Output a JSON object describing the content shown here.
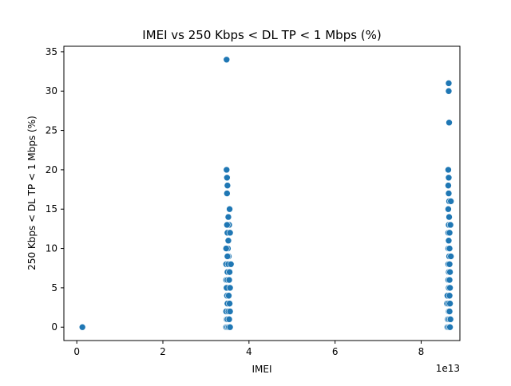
{
  "chart_data": {
    "type": "scatter",
    "title": "IMEI vs 250 Kbps < DL TP < 1 Mbps (%)",
    "xlabel": "IMEI",
    "ylabel": "250 Kbps < DL TP < 1 Mbps (%)",
    "x_offset_label": "1e13",
    "xlim": [
      -0.3,
      8.9
    ],
    "ylim": [
      -1.7,
      35.7
    ],
    "xticks": [
      0,
      2,
      4,
      6,
      8
    ],
    "yticks": [
      0,
      5,
      10,
      15,
      20,
      25,
      30,
      35
    ],
    "grid": false,
    "legend": "none",
    "marker_color": "#1f77b4",
    "series": [
      {
        "x_unit_multiplier": 10000000000000.0,
        "points": [
          [
            0.13,
            0
          ],
          [
            3.48,
            34
          ],
          [
            3.48,
            20
          ],
          [
            3.49,
            19
          ],
          [
            3.5,
            18
          ],
          [
            3.49,
            17
          ],
          [
            3.55,
            15
          ],
          [
            3.52,
            14
          ],
          [
            3.54,
            13
          ],
          [
            3.49,
            13
          ],
          [
            3.5,
            12
          ],
          [
            3.56,
            12
          ],
          [
            3.52,
            11
          ],
          [
            3.51,
            10
          ],
          [
            3.47,
            10
          ],
          [
            3.53,
            9
          ],
          [
            3.5,
            9
          ],
          [
            3.47,
            8
          ],
          [
            3.52,
            8
          ],
          [
            3.58,
            8
          ],
          [
            3.5,
            7
          ],
          [
            3.55,
            7
          ],
          [
            3.47,
            6
          ],
          [
            3.5,
            6
          ],
          [
            3.54,
            6
          ],
          [
            3.52,
            5
          ],
          [
            3.48,
            5
          ],
          [
            3.56,
            5
          ],
          [
            3.49,
            4
          ],
          [
            3.53,
            4
          ],
          [
            3.5,
            3
          ],
          [
            3.55,
            3
          ],
          [
            3.47,
            2
          ],
          [
            3.52,
            2
          ],
          [
            3.56,
            2
          ],
          [
            3.48,
            1
          ],
          [
            3.5,
            1
          ],
          [
            3.54,
            1
          ],
          [
            3.47,
            0
          ],
          [
            3.5,
            0
          ],
          [
            3.53,
            0
          ],
          [
            3.56,
            0
          ],
          [
            8.64,
            31
          ],
          [
            8.64,
            30
          ],
          [
            8.65,
            26
          ],
          [
            8.63,
            20
          ],
          [
            8.64,
            19
          ],
          [
            8.63,
            18
          ],
          [
            8.64,
            17
          ],
          [
            8.65,
            16
          ],
          [
            8.69,
            16
          ],
          [
            8.63,
            15
          ],
          [
            8.65,
            14
          ],
          [
            8.64,
            13
          ],
          [
            8.68,
            13
          ],
          [
            8.63,
            12
          ],
          [
            8.66,
            12
          ],
          [
            8.64,
            11
          ],
          [
            8.63,
            10
          ],
          [
            8.66,
            10
          ],
          [
            8.65,
            9
          ],
          [
            8.69,
            9
          ],
          [
            8.63,
            8
          ],
          [
            8.66,
            8
          ],
          [
            8.64,
            7
          ],
          [
            8.67,
            7
          ],
          [
            8.63,
            6
          ],
          [
            8.66,
            6
          ],
          [
            8.64,
            5
          ],
          [
            8.67,
            5
          ],
          [
            8.63,
            4
          ],
          [
            8.61,
            4
          ],
          [
            8.66,
            4
          ],
          [
            8.6,
            3
          ],
          [
            8.63,
            3
          ],
          [
            8.67,
            3
          ],
          [
            8.64,
            2
          ],
          [
            8.66,
            2
          ],
          [
            8.62,
            1
          ],
          [
            8.65,
            1
          ],
          [
            8.68,
            1
          ],
          [
            8.61,
            0
          ],
          [
            8.64,
            0
          ],
          [
            8.67,
            0
          ]
        ]
      }
    ]
  }
}
